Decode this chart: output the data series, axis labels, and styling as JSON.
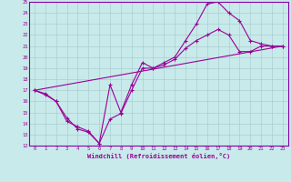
{
  "xlabel": "Windchill (Refroidissement éolien,°C)",
  "ylabel": "",
  "xlim": [
    -0.5,
    23.5
  ],
  "ylim": [
    12,
    25
  ],
  "xticks": [
    0,
    1,
    2,
    3,
    4,
    5,
    6,
    7,
    8,
    9,
    10,
    11,
    12,
    13,
    14,
    15,
    16,
    17,
    18,
    19,
    20,
    21,
    22,
    23
  ],
  "yticks": [
    12,
    13,
    14,
    15,
    16,
    17,
    18,
    19,
    20,
    21,
    22,
    23,
    24,
    25
  ],
  "bg_color": "#c8eaea",
  "grid_color": "#aacece",
  "line_color": "#990099",
  "spine_color": "#8800aa",
  "line1_x": [
    0,
    1,
    2,
    3,
    4,
    5,
    6,
    7,
    8,
    9,
    10,
    11,
    12,
    13,
    14,
    15,
    16,
    17,
    18,
    19,
    20,
    21,
    22,
    23
  ],
  "line1_y": [
    17.0,
    16.6,
    16.0,
    14.2,
    13.7,
    13.3,
    12.2,
    17.5,
    15.0,
    17.5,
    19.5,
    19.0,
    19.5,
    20.0,
    21.5,
    23.0,
    24.8,
    25.0,
    24.0,
    23.3,
    21.5,
    21.2,
    21.0,
    21.0
  ],
  "line2_x": [
    0,
    1,
    2,
    3,
    4,
    5,
    6,
    7,
    8,
    9,
    10,
    11,
    12,
    13,
    14,
    15,
    16,
    17,
    18,
    19,
    20,
    21,
    22,
    23
  ],
  "line2_y": [
    17.0,
    16.7,
    16.0,
    14.5,
    13.5,
    13.2,
    12.2,
    14.4,
    14.9,
    17.0,
    19.0,
    19.0,
    19.3,
    19.8,
    20.8,
    21.5,
    22.0,
    22.5,
    22.0,
    20.5,
    20.5,
    21.0,
    21.0,
    21.0
  ],
  "line3_x": [
    0,
    23
  ],
  "line3_y": [
    17.0,
    21.0
  ],
  "marker": "+",
  "markersize": 3,
  "linewidth": 0.8
}
